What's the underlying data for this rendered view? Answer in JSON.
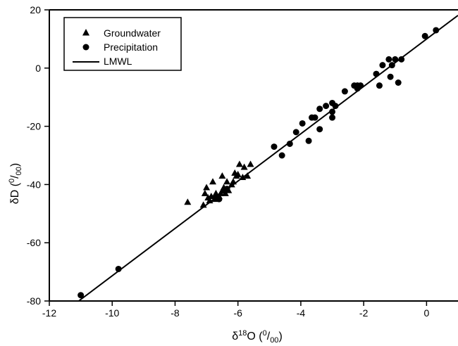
{
  "chart_data": {
    "type": "scatter",
    "xlabel": {
      "delta": "δ",
      "sup": "18",
      "main": "O (",
      "unit_num": "0",
      "unit_den": "00",
      "close": ")"
    },
    "ylabel": {
      "delta": "δ",
      "main": "D (",
      "unit_num": "0",
      "unit_den": "00",
      "close": ")"
    },
    "xlim": [
      -12,
      1
    ],
    "ylim": [
      -80,
      20
    ],
    "xticks": [
      -12,
      -10,
      -8,
      -6,
      -4,
      -2,
      0
    ],
    "yticks": [
      -80,
      -60,
      -40,
      -20,
      0,
      20
    ],
    "grid": false,
    "legend": {
      "position": "top-left",
      "entries": [
        {
          "label": "Groundwater",
          "marker": "triangle"
        },
        {
          "label": "Precipitation",
          "marker": "circle"
        },
        {
          "label": "LMWL",
          "marker": "line"
        }
      ]
    },
    "series": [
      {
        "name": "Groundwater",
        "marker": "triangle",
        "points": [
          [
            -7.6,
            -46
          ],
          [
            -7.1,
            -47
          ],
          [
            -7.05,
            -43
          ],
          [
            -7.0,
            -41
          ],
          [
            -6.95,
            -44.5
          ],
          [
            -6.9,
            -45.5
          ],
          [
            -6.85,
            -44
          ],
          [
            -6.8,
            -39
          ],
          [
            -6.75,
            -45
          ],
          [
            -6.7,
            -43
          ],
          [
            -6.6,
            -44
          ],
          [
            -6.55,
            -43
          ],
          [
            -6.5,
            -37
          ],
          [
            -6.45,
            -41
          ],
          [
            -6.4,
            -43
          ],
          [
            -6.35,
            -39
          ],
          [
            -6.3,
            -42
          ],
          [
            -6.2,
            -40
          ],
          [
            -6.15,
            -39
          ],
          [
            -6.1,
            -36
          ],
          [
            -6.05,
            -37
          ],
          [
            -6.0,
            -36.5
          ],
          [
            -5.95,
            -33
          ],
          [
            -5.85,
            -37.5
          ],
          [
            -5.8,
            -34
          ],
          [
            -5.7,
            -37
          ],
          [
            -5.6,
            -33
          ]
        ]
      },
      {
        "name": "Precipitation",
        "marker": "circle",
        "points": [
          [
            -11.0,
            -78
          ],
          [
            -9.8,
            -69
          ],
          [
            -6.7,
            -44.5
          ],
          [
            -6.6,
            -45
          ],
          [
            -6.45,
            -42
          ],
          [
            -6.35,
            -41.5
          ],
          [
            -4.85,
            -27
          ],
          [
            -4.6,
            -30
          ],
          [
            -4.35,
            -26
          ],
          [
            -4.15,
            -22
          ],
          [
            -3.95,
            -19
          ],
          [
            -3.75,
            -25
          ],
          [
            -3.65,
            -17
          ],
          [
            -3.55,
            -17
          ],
          [
            -3.4,
            -14
          ],
          [
            -3.4,
            -21
          ],
          [
            -3.2,
            -13
          ],
          [
            -3.0,
            -12
          ],
          [
            -3.0,
            -15
          ],
          [
            -3.0,
            -17
          ],
          [
            -2.9,
            -13
          ],
          [
            -2.6,
            -8
          ],
          [
            -2.3,
            -6
          ],
          [
            -2.2,
            -7
          ],
          [
            -2.2,
            -6
          ],
          [
            -2.1,
            -6
          ],
          [
            -1.6,
            -2
          ],
          [
            -1.5,
            -6
          ],
          [
            -1.4,
            1
          ],
          [
            -1.2,
            3
          ],
          [
            -1.15,
            -3
          ],
          [
            -1.1,
            1
          ],
          [
            -1.0,
            3
          ],
          [
            -0.9,
            -5
          ],
          [
            -0.8,
            3
          ],
          [
            -0.05,
            11
          ],
          [
            0.3,
            13
          ]
        ]
      },
      {
        "name": "LMWL",
        "marker": "line",
        "line": {
          "x": [
            -12,
            1
          ],
          "y": [
            -87.6,
            18.1
          ]
        }
      }
    ]
  }
}
